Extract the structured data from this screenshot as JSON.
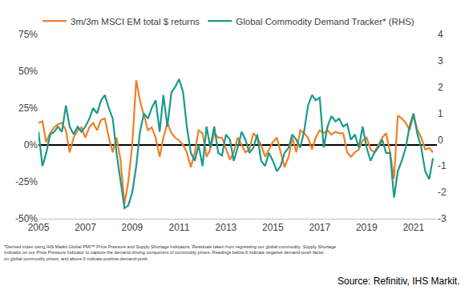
{
  "chart_data": {
    "type": "line",
    "legend": "top",
    "grid": false,
    "x": [
      2005,
      2005.17,
      2005.33,
      2005.5,
      2005.67,
      2005.83,
      2006,
      2006.17,
      2006.33,
      2006.5,
      2006.67,
      2006.83,
      2007,
      2007.17,
      2007.33,
      2007.5,
      2007.67,
      2007.83,
      2008,
      2008.17,
      2008.33,
      2008.5,
      2008.67,
      2008.83,
      2009,
      2009.17,
      2009.33,
      2009.5,
      2009.67,
      2009.83,
      2010,
      2010.17,
      2010.33,
      2010.5,
      2010.67,
      2010.83,
      2011,
      2011.17,
      2011.33,
      2011.5,
      2011.67,
      2011.83,
      2012,
      2012.17,
      2012.33,
      2012.5,
      2012.67,
      2012.83,
      2013,
      2013.17,
      2013.33,
      2013.5,
      2013.67,
      2013.83,
      2014,
      2014.17,
      2014.33,
      2014.5,
      2014.67,
      2014.83,
      2015,
      2015.17,
      2015.33,
      2015.5,
      2015.67,
      2015.83,
      2016,
      2016.17,
      2016.33,
      2016.5,
      2016.67,
      2016.83,
      2017,
      2017.17,
      2017.33,
      2017.5,
      2017.67,
      2017.83,
      2018,
      2018.17,
      2018.33,
      2018.5,
      2018.67,
      2018.83,
      2019,
      2019.17,
      2019.33,
      2019.5,
      2019.67,
      2019.83,
      2020,
      2020.17,
      2020.33,
      2020.5,
      2020.67,
      2020.83,
      2021,
      2021.17,
      2021.33,
      2021.5,
      2021.67,
      2021.83
    ],
    "xlim": [
      2005,
      2022
    ],
    "xticks": [
      2005,
      2007,
      2009,
      2011,
      2013,
      2015,
      2017,
      2019,
      2021
    ],
    "ylim": [
      -50,
      75
    ],
    "yticks": [
      {
        "value": -50,
        "label": "-50%"
      },
      {
        "value": -25,
        "label": "-25%"
      },
      {
        "value": 0,
        "label": "0%"
      },
      {
        "value": 25,
        "label": "25%"
      },
      {
        "value": 50,
        "label": "50%"
      },
      {
        "value": 75,
        "label": "75%"
      }
    ],
    "y2lim": [
      -3,
      4
    ],
    "y2ticks": [
      -3,
      -2,
      -1,
      0,
      1,
      2,
      3,
      4
    ],
    "series": [
      {
        "name": "3m/3m MSCI EM total $ returns",
        "color": "#f07f2a",
        "axis": "y",
        "values": [
          15,
          16,
          2,
          8,
          12,
          14,
          15,
          10,
          -5,
          5,
          10,
          12,
          5,
          12,
          15,
          10,
          17,
          18,
          5,
          -5,
          5,
          -10,
          -40,
          -25,
          0,
          44,
          30,
          20,
          10,
          12,
          5,
          -8,
          5,
          15,
          8,
          5,
          3,
          0,
          -5,
          -15,
          -5,
          10,
          8,
          -8,
          -3,
          8,
          5,
          5,
          -3,
          -10,
          -5,
          5,
          0,
          -5,
          -3,
          8,
          5,
          0,
          -8,
          -3,
          2,
          5,
          -5,
          -15,
          -8,
          5,
          -5,
          10,
          8,
          5,
          -3,
          5,
          10,
          8,
          10,
          7,
          9,
          8,
          8,
          -5,
          -8,
          -5,
          -3,
          3,
          5,
          -3,
          -5,
          0,
          5,
          8,
          -5,
          -23,
          20,
          18,
          15,
          10,
          20,
          10,
          5,
          -3,
          -2,
          -5
        ]
      },
      {
        "name": "Global Commodity Demand Tracker* (RHS)",
        "color": "#1a9a8a",
        "axis": "y2",
        "values": [
          0.3,
          -1.0,
          -0.5,
          0.2,
          0.3,
          0.5,
          0.3,
          1.3,
          0.5,
          0.2,
          0.5,
          0.3,
          0.5,
          0.8,
          1.2,
          1.0,
          1.5,
          1.7,
          1.2,
          0.8,
          -0.5,
          -1.5,
          -2.6,
          -2.5,
          -2.0,
          -1.0,
          0.3,
          1.0,
          0.8,
          1.2,
          1.5,
          0.3,
          1.7,
          0.5,
          1.8,
          2.0,
          2.3,
          1.8,
          0.5,
          -0.5,
          -0.8,
          -0.2,
          -1.0,
          0.5,
          -0.3,
          0.5,
          -0.5,
          -0.6,
          0.2,
          0.0,
          -0.8,
          -0.3,
          0.3,
          0.0,
          -0.5,
          -0.3,
          0.2,
          -0.8,
          -1.0,
          -0.5,
          -0.8,
          -1.2,
          -1.0,
          -0.5,
          -0.3,
          0.2,
          0.0,
          -0.3,
          0.3,
          1.3,
          1.7,
          1.5,
          1.6,
          -0.3,
          0.5,
          0.9,
          0.7,
          0.8,
          0.5,
          0.6,
          0.0,
          0.2,
          -0.3,
          0.5,
          -0.3,
          -0.8,
          -0.5,
          -0.3,
          0.0,
          -0.5,
          -0.5,
          -2.2,
          -1.2,
          -0.8,
          -0.3,
          0.5,
          1.0,
          0.2,
          -0.3,
          -1.2,
          -1.5,
          -0.7
        ]
      }
    ],
    "footnote": [
      "*Derived index using IHS Markit Global PMI™ Price Pressure and Supply Shortage Indicators. Residuals taken from regressing our global commodity  Supply Shortage",
      "Indicator on our Price Pressure Indicator to capture the demand-driving component of commodity prices. Readings below 0 indicate negative demand-push factor",
      "on global commodity prices, and above 0 indicate positive demand-push."
    ],
    "source": "Source: Refinitiv, IHS Markit."
  }
}
